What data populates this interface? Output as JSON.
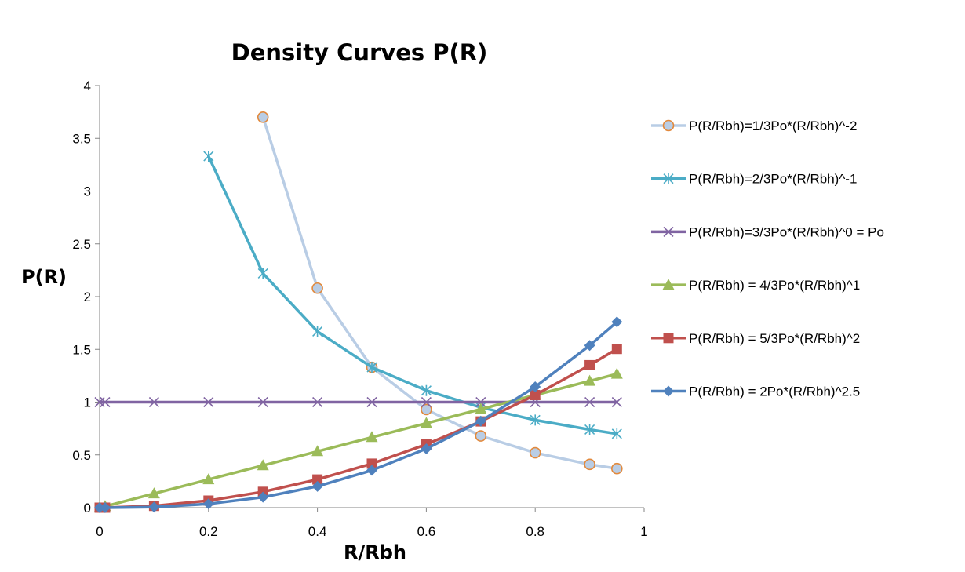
{
  "chart_data": {
    "type": "line",
    "title": "Density Curves P(R)",
    "xlabel": "R/Rbh",
    "ylabel": "P(R)",
    "xlim": [
      0,
      1
    ],
    "ylim": [
      0,
      4
    ],
    "x_ticks": [
      0,
      0.2,
      0.4,
      0.6,
      0.8,
      1
    ],
    "x_tick_labels": [
      "0",
      "0.2",
      "0.4",
      "0.6",
      "0.8",
      "1"
    ],
    "y_ticks": [
      0,
      0.5,
      1,
      1.5,
      2,
      2.5,
      3,
      3.5,
      4
    ],
    "y_tick_labels": [
      "0",
      "0.5",
      "1",
      "1.5",
      "2",
      "2.5",
      "3",
      "3.5",
      "4"
    ],
    "grid": false,
    "legend_position": "right",
    "series": [
      {
        "name": "P(R/Rbh)=1/3Po*(R/Rbh)^-2",
        "color": "#B9CDE5",
        "marker_color": "#E2893C",
        "marker": "circle",
        "x": [
          0.3,
          0.4,
          0.5,
          0.6,
          0.7,
          0.8,
          0.9,
          0.95
        ],
        "values": [
          3.7,
          2.08,
          1.33,
          0.93,
          0.68,
          0.52,
          0.41,
          0.37
        ]
      },
      {
        "name": "P(R/Rbh)=2/3Po*(R/Rbh)^-1",
        "color": "#4BACC6",
        "marker_color": "#4BACC6",
        "marker": "asterisk",
        "x": [
          0.2,
          0.3,
          0.4,
          0.5,
          0.6,
          0.7,
          0.8,
          0.9,
          0.95
        ],
        "values": [
          3.33,
          2.22,
          1.67,
          1.33,
          1.11,
          0.95,
          0.83,
          0.74,
          0.7
        ]
      },
      {
        "name": "P(R/Rbh)=3/3Po*(R/Rbh)^0 = Po",
        "color": "#8064A2",
        "marker_color": "#8064A2",
        "marker": "x",
        "x": [
          0,
          0.01,
          0.1,
          0.2,
          0.3,
          0.4,
          0.5,
          0.6,
          0.7,
          0.8,
          0.9,
          0.95
        ],
        "values": [
          1,
          1,
          1,
          1,
          1,
          1,
          1,
          1,
          1,
          1,
          1,
          1
        ]
      },
      {
        "name": "P(R/Rbh) = 4/3Po*(R/Rbh)^1",
        "color": "#9BBB59",
        "marker_color": "#9BBB59",
        "marker": "triangle",
        "x": [
          0,
          0.01,
          0.1,
          0.2,
          0.3,
          0.4,
          0.5,
          0.6,
          0.7,
          0.8,
          0.9,
          0.95
        ],
        "values": [
          0,
          0.013,
          0.133,
          0.267,
          0.4,
          0.533,
          0.667,
          0.8,
          0.933,
          1.067,
          1.2,
          1.267
        ]
      },
      {
        "name": "P(R/Rbh) = 5/3Po*(R/Rbh)^2",
        "color": "#C0504D",
        "marker_color": "#C0504D",
        "marker": "square",
        "x": [
          0,
          0.01,
          0.1,
          0.2,
          0.3,
          0.4,
          0.5,
          0.6,
          0.7,
          0.8,
          0.9,
          0.95
        ],
        "values": [
          0,
          0.0002,
          0.017,
          0.067,
          0.15,
          0.267,
          0.417,
          0.6,
          0.817,
          1.067,
          1.35,
          1.504
        ]
      },
      {
        "name": "P(R/Rbh) = 2Po*(R/Rbh)^2.5",
        "color": "#4F81BD",
        "marker_color": "#4F81BD",
        "marker": "diamond",
        "x": [
          0,
          0.01,
          0.1,
          0.2,
          0.3,
          0.4,
          0.5,
          0.6,
          0.7,
          0.8,
          0.9,
          0.95
        ],
        "values": [
          0,
          0,
          0.006,
          0.036,
          0.099,
          0.202,
          0.354,
          0.558,
          0.82,
          1.145,
          1.537,
          1.76
        ]
      }
    ]
  }
}
